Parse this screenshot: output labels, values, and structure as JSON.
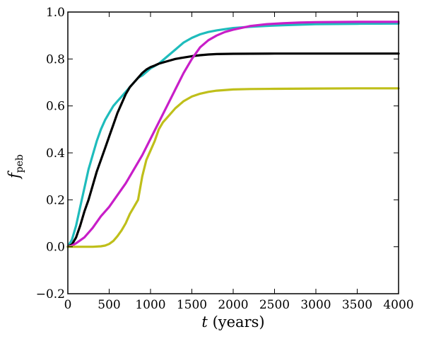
{
  "chart_data": {
    "type": "line",
    "title": "",
    "xlabel_var": "t",
    "xlabel_unit": "(years)",
    "ylabel_var": "f",
    "ylabel_sub": "peb",
    "xlim": [
      0,
      4000
    ],
    "ylim": [
      -0.2,
      1.0
    ],
    "x_ticks": [
      0,
      500,
      1000,
      1500,
      2000,
      2500,
      3000,
      3500,
      4000
    ],
    "x_tick_labels": [
      "0",
      "500",
      "1000",
      "1500",
      "2000",
      "2500",
      "3000",
      "3500",
      "4000"
    ],
    "y_ticks": [
      -0.2,
      0.0,
      0.2,
      0.4,
      0.6,
      0.8,
      1.0
    ],
    "y_tick_labels": [
      "−0.2",
      "0.0",
      "0.2",
      "0.4",
      "0.6",
      "0.8",
      "1.0"
    ],
    "grid": false,
    "legend": "none",
    "series": [
      {
        "color": "#1ebcbc",
        "x": [
          0,
          50,
          100,
          150,
          200,
          250,
          300,
          350,
          400,
          450,
          500,
          550,
          600,
          650,
          700,
          750,
          800,
          850,
          900,
          1000,
          1100,
          1200,
          1300,
          1400,
          1500,
          1600,
          1700,
          1800,
          1900,
          2000,
          2200,
          2400,
          2600,
          2800,
          3000,
          3500,
          4000
        ],
        "y": [
          0.0,
          0.03,
          0.09,
          0.17,
          0.25,
          0.33,
          0.39,
          0.45,
          0.5,
          0.54,
          0.57,
          0.6,
          0.62,
          0.64,
          0.66,
          0.68,
          0.7,
          0.72,
          0.73,
          0.76,
          0.78,
          0.81,
          0.84,
          0.87,
          0.89,
          0.905,
          0.915,
          0.922,
          0.927,
          0.932,
          0.937,
          0.941,
          0.944,
          0.946,
          0.948,
          0.95,
          0.951
        ]
      },
      {
        "color": "#000000",
        "x": [
          0,
          50,
          100,
          150,
          200,
          250,
          300,
          350,
          400,
          450,
          500,
          550,
          600,
          650,
          700,
          750,
          800,
          850,
          900,
          950,
          1000,
          1050,
          1100,
          1200,
          1300,
          1400,
          1500,
          1600,
          1700,
          1800,
          2000,
          2500,
          3000,
          3500,
          4000
        ],
        "y": [
          0.0,
          0.01,
          0.04,
          0.09,
          0.15,
          0.2,
          0.26,
          0.32,
          0.37,
          0.42,
          0.47,
          0.52,
          0.57,
          0.61,
          0.65,
          0.68,
          0.7,
          0.72,
          0.74,
          0.755,
          0.765,
          0.772,
          0.78,
          0.79,
          0.8,
          0.806,
          0.812,
          0.816,
          0.819,
          0.821,
          0.822,
          0.823,
          0.823,
          0.823,
          0.823
        ]
      },
      {
        "color": "#c81ec8",
        "x": [
          0,
          50,
          100,
          200,
          300,
          400,
          500,
          600,
          700,
          800,
          900,
          1000,
          1100,
          1200,
          1300,
          1400,
          1500,
          1600,
          1700,
          1800,
          1900,
          2000,
          2200,
          2400,
          2600,
          2800,
          3000,
          3500,
          4000
        ],
        "y": [
          0.0,
          0.005,
          0.015,
          0.04,
          0.08,
          0.13,
          0.17,
          0.22,
          0.27,
          0.33,
          0.39,
          0.46,
          0.53,
          0.6,
          0.67,
          0.74,
          0.8,
          0.85,
          0.88,
          0.9,
          0.915,
          0.925,
          0.94,
          0.948,
          0.952,
          0.955,
          0.957,
          0.958,
          0.958
        ]
      },
      {
        "color": "#bfbf1a",
        "x": [
          0,
          200,
          300,
          400,
          450,
          500,
          550,
          600,
          650,
          700,
          750,
          800,
          850,
          900,
          950,
          1000,
          1050,
          1100,
          1150,
          1200,
          1300,
          1400,
          1500,
          1600,
          1700,
          1800,
          2000,
          2200,
          2500,
          3000,
          3500,
          4000
        ],
        "y": [
          0.0,
          0.0,
          0.0,
          0.002,
          0.005,
          0.012,
          0.025,
          0.045,
          0.07,
          0.1,
          0.14,
          0.17,
          0.2,
          0.3,
          0.37,
          0.41,
          0.45,
          0.5,
          0.53,
          0.55,
          0.59,
          0.62,
          0.64,
          0.652,
          0.66,
          0.665,
          0.67,
          0.672,
          0.673,
          0.674,
          0.675,
          0.675
        ]
      }
    ]
  }
}
